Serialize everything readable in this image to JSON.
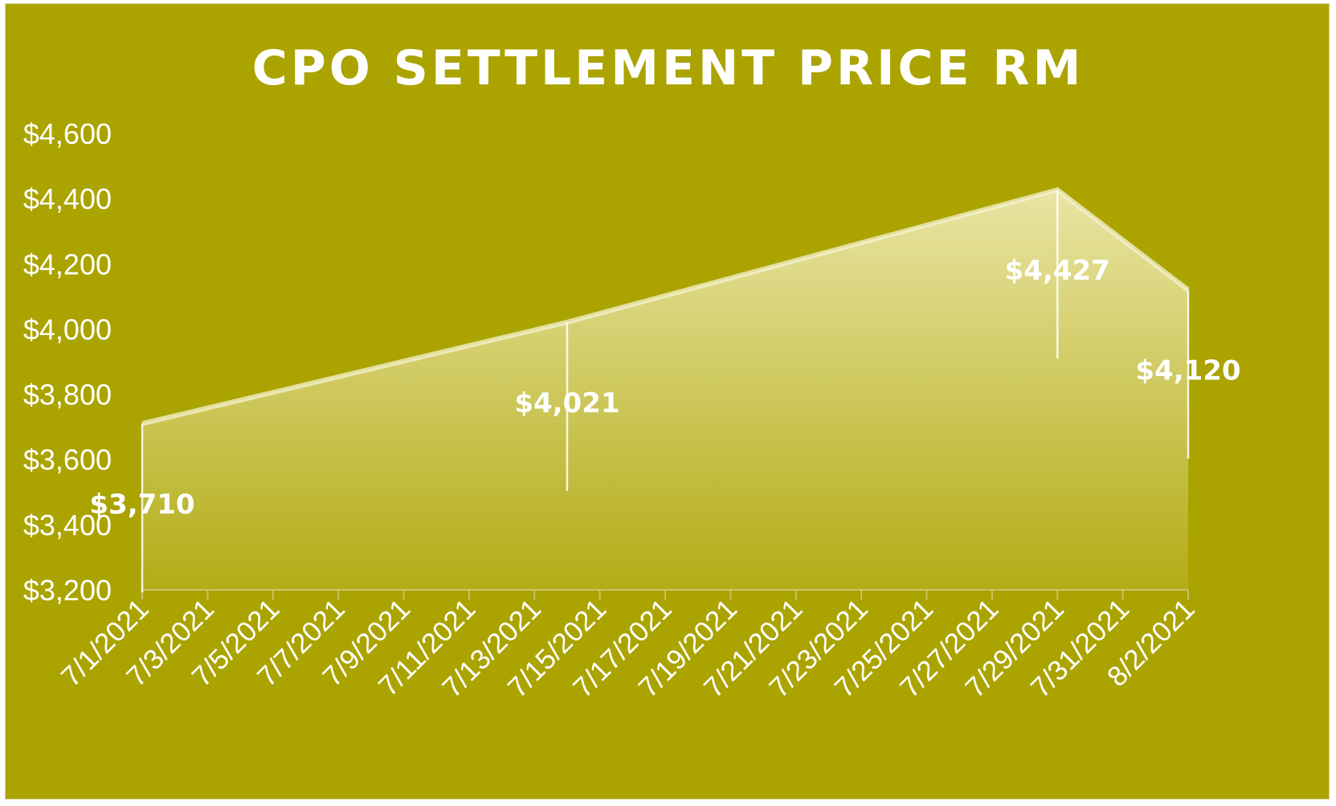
{
  "chart_data": {
    "type": "area",
    "title": "CPO SETTLEMENT PRICE RM",
    "xlabel": "",
    "ylabel": "",
    "ylim": [
      3200,
      4600
    ],
    "y_ticks": [
      "$4,600",
      "$4,400",
      "$4,200",
      "$4,000",
      "$3,800",
      "$3,600",
      "$3,400",
      "$3,200"
    ],
    "x_ticks": [
      "7/1/2021",
      "7/3/2021",
      "7/5/2021",
      "7/7/2021",
      "7/9/2021",
      "7/11/2021",
      "7/13/2021",
      "7/15/2021",
      "7/17/2021",
      "7/19/2021",
      "7/21/2021",
      "7/23/2021",
      "7/25/2021",
      "7/27/2021",
      "7/29/2021",
      "7/31/2021",
      "8/2/2021"
    ],
    "x_range": [
      "7/1/2021",
      "8/2/2021"
    ],
    "grid": false,
    "legend": "none",
    "points": [
      {
        "x": "7/1/2021",
        "y": 3710,
        "label": "$3,710"
      },
      {
        "x": "7/14/2021",
        "y": 4021,
        "label": "$4,021"
      },
      {
        "x": "7/29/2021",
        "y": 4427,
        "label": "$4,427"
      },
      {
        "x": "8/2/2021",
        "y": 4120,
        "label": "$4,120"
      }
    ],
    "colors": {
      "background": "#aaa300",
      "fill": "#f4f0c0",
      "text": "#ffffff"
    }
  }
}
